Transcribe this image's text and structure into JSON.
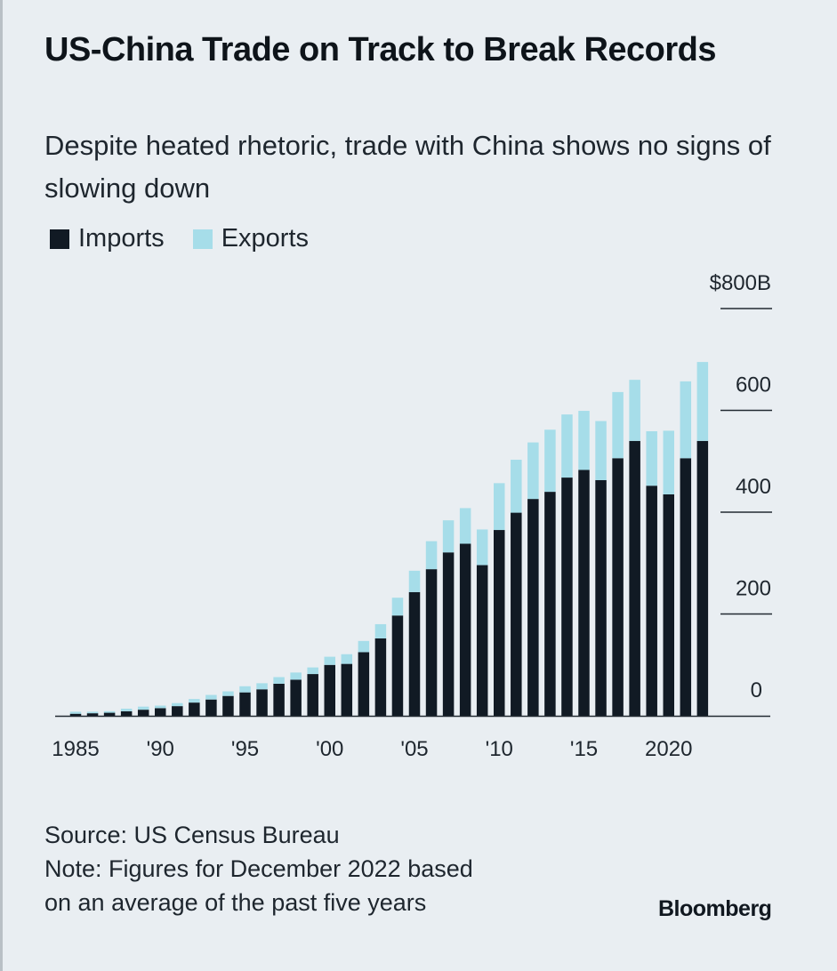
{
  "header": {
    "title": "US-China Trade on Track to Break Records",
    "subtitle": "Despite heated rhetoric, trade with China shows no signs of slowing down"
  },
  "legend": {
    "imports_label": "Imports",
    "exports_label": "Exports"
  },
  "footer": {
    "source": "Source: US Census Bureau",
    "note_line1": "Note: Figures for December 2022 based",
    "note_line2": "on an average of the past five years",
    "brand": "Bloomberg"
  },
  "colors": {
    "imports": "#111a24",
    "exports": "#a6dde9",
    "background": "#e9eef2",
    "axis": "#222a32"
  },
  "chart_data": {
    "type": "bar",
    "stacked": true,
    "title": "US-China Trade on Track to Break Records",
    "subtitle": "Despite heated rhetoric, trade with China shows no signs of slowing down",
    "xlabel": "",
    "ylabel": "",
    "ylim": [
      0,
      800
    ],
    "y_ticks": [
      0,
      200,
      400,
      600,
      800
    ],
    "y_tick_labels": [
      "0",
      "200",
      "400",
      "600",
      "$800B"
    ],
    "y_axis_position": "right",
    "x_tick_labels": [
      {
        "year": 1985,
        "label": "1985"
      },
      {
        "year": 1990,
        "label": "'90"
      },
      {
        "year": 1995,
        "label": "'95"
      },
      {
        "year": 2000,
        "label": "'00"
      },
      {
        "year": 2005,
        "label": "'05"
      },
      {
        "year": 2010,
        "label": "'10"
      },
      {
        "year": 2015,
        "label": "'15"
      },
      {
        "year": 2020,
        "label": "2020"
      }
    ],
    "grid": false,
    "legend_position": "top-left",
    "categories": [
      1985,
      1986,
      1987,
      1988,
      1989,
      1990,
      1991,
      1992,
      1993,
      1994,
      1995,
      1996,
      1997,
      1998,
      1999,
      2000,
      2001,
      2002,
      2003,
      2004,
      2005,
      2006,
      2007,
      2008,
      2009,
      2010,
      2011,
      2012,
      2013,
      2014,
      2015,
      2016,
      2017,
      2018,
      2019,
      2020,
      2021,
      2022
    ],
    "series": [
      {
        "name": "Imports",
        "values": [
          4,
          5,
          6,
          9,
          12,
          15,
          19,
          26,
          32,
          39,
          46,
          52,
          63,
          71,
          82,
          100,
          102,
          125,
          152,
          197,
          243,
          288,
          321,
          338,
          296,
          365,
          399,
          426,
          440,
          468,
          483,
          463,
          506,
          540,
          452,
          435,
          506,
          540
        ]
      },
      {
        "name": "Exports",
        "values": [
          4,
          3,
          3,
          5,
          6,
          5,
          6,
          7,
          9,
          9,
          12,
          12,
          13,
          14,
          13,
          16,
          19,
          22,
          28,
          35,
          42,
          55,
          63,
          70,
          70,
          92,
          104,
          111,
          122,
          124,
          116,
          116,
          130,
          120,
          107,
          125,
          151,
          155
        ]
      }
    ]
  }
}
